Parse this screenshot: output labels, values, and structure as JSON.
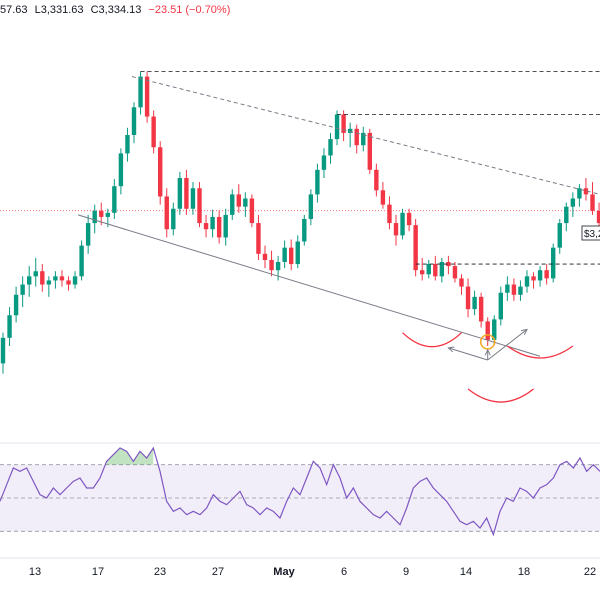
{
  "legend": {
    "open": "57.63",
    "low": "L3,331.63",
    "close": "C3,334.13",
    "change": "−23.51 (−0.70%)"
  },
  "price_tag": "$3,2",
  "colors": {
    "up": "#089981",
    "down": "#f23645",
    "rsi_line": "#7e57c2",
    "rsi_band": "#ede7f6",
    "overbought_fill": "#4caf50",
    "oversold_fill": "#f23645",
    "trendline": "#787b86",
    "arc": "#f23645",
    "circle": "#f5a623",
    "current_price_line": "#f23645"
  },
  "chart_data": [
    {
      "type": "candlestick",
      "title": "",
      "x_tick_labels": [
        "13",
        "17",
        "23",
        "27",
        "May",
        "6",
        "9",
        "14",
        "18",
        "22"
      ],
      "grid": false,
      "y_axis_visible": false,
      "candles_ohlc": [
        [
          3215,
          3245,
          3205,
          3240
        ],
        [
          3240,
          3270,
          3232,
          3262
        ],
        [
          3262,
          3290,
          3255,
          3282
        ],
        [
          3282,
          3300,
          3270,
          3292
        ],
        [
          3292,
          3310,
          3280,
          3300
        ],
        [
          3300,
          3318,
          3290,
          3305
        ],
        [
          3305,
          3312,
          3285,
          3292
        ],
        [
          3292,
          3300,
          3280,
          3296
        ],
        [
          3296,
          3305,
          3288,
          3300
        ],
        [
          3300,
          3306,
          3290,
          3296
        ],
        [
          3296,
          3300,
          3286,
          3292
        ],
        [
          3292,
          3305,
          3288,
          3300
        ],
        [
          3300,
          3335,
          3296,
          3330
        ],
        [
          3330,
          3360,
          3322,
          3352
        ],
        [
          3352,
          3370,
          3342,
          3364
        ],
        [
          3364,
          3372,
          3350,
          3358
        ],
        [
          3358,
          3366,
          3348,
          3362
        ],
        [
          3362,
          3395,
          3356,
          3388
        ],
        [
          3388,
          3425,
          3380,
          3420
        ],
        [
          3420,
          3445,
          3412,
          3438
        ],
        [
          3438,
          3470,
          3430,
          3465
        ],
        [
          3465,
          3500,
          3458,
          3495
        ],
        [
          3495,
          3500,
          3450,
          3456
        ],
        [
          3456,
          3462,
          3420,
          3426
        ],
        [
          3426,
          3432,
          3370,
          3378
        ],
        [
          3378,
          3386,
          3338,
          3346
        ],
        [
          3346,
          3372,
          3340,
          3366
        ],
        [
          3366,
          3402,
          3360,
          3396
        ],
        [
          3396,
          3404,
          3360,
          3366
        ],
        [
          3366,
          3392,
          3360,
          3386
        ],
        [
          3386,
          3392,
          3348,
          3352
        ],
        [
          3352,
          3360,
          3338,
          3346
        ],
        [
          3346,
          3365,
          3338,
          3358
        ],
        [
          3358,
          3364,
          3332,
          3338
        ],
        [
          3338,
          3366,
          3330,
          3360
        ],
        [
          3360,
          3385,
          3355,
          3380
        ],
        [
          3380,
          3390,
          3362,
          3368
        ],
        [
          3368,
          3382,
          3358,
          3376
        ],
        [
          3376,
          3380,
          3348,
          3352
        ],
        [
          3352,
          3360,
          3316,
          3322
        ],
        [
          3322,
          3330,
          3308,
          3316
        ],
        [
          3316,
          3325,
          3300,
          3306
        ],
        [
          3306,
          3320,
          3296,
          3314
        ],
        [
          3314,
          3335,
          3308,
          3328
        ],
        [
          3328,
          3336,
          3306,
          3312
        ],
        [
          3312,
          3340,
          3308,
          3334
        ],
        [
          3334,
          3360,
          3330,
          3356
        ],
        [
          3356,
          3385,
          3350,
          3380
        ],
        [
          3380,
          3410,
          3372,
          3404
        ],
        [
          3404,
          3425,
          3396,
          3418
        ],
        [
          3418,
          3440,
          3410,
          3434
        ],
        [
          3434,
          3462,
          3428,
          3458
        ],
        [
          3458,
          3462,
          3432,
          3440
        ],
        [
          3440,
          3450,
          3426,
          3444
        ],
        [
          3444,
          3448,
          3420,
          3428
        ],
        [
          3428,
          3446,
          3422,
          3440
        ],
        [
          3440,
          3444,
          3400,
          3404
        ],
        [
          3404,
          3410,
          3378,
          3384
        ],
        [
          3384,
          3392,
          3366,
          3370
        ],
        [
          3370,
          3378,
          3346,
          3352
        ],
        [
          3352,
          3360,
          3330,
          3340
        ],
        [
          3340,
          3366,
          3336,
          3362
        ],
        [
          3362,
          3366,
          3344,
          3350
        ],
        [
          3350,
          3356,
          3300,
          3306
        ],
        [
          3306,
          3318,
          3296,
          3302
        ],
        [
          3302,
          3316,
          3298,
          3312
        ],
        [
          3312,
          3320,
          3296,
          3300
        ],
        [
          3300,
          3318,
          3294,
          3314
        ],
        [
          3314,
          3320,
          3302,
          3310
        ],
        [
          3310,
          3314,
          3294,
          3298
        ],
        [
          3298,
          3302,
          3282,
          3290
        ],
        [
          3290,
          3298,
          3260,
          3268
        ],
        [
          3268,
          3286,
          3262,
          3280
        ],
        [
          3280,
          3284,
          3250,
          3256
        ],
        [
          3256,
          3260,
          3232,
          3238
        ],
        [
          3238,
          3262,
          3234,
          3258
        ],
        [
          3258,
          3290,
          3252,
          3284
        ],
        [
          3284,
          3300,
          3276,
          3292
        ],
        [
          3292,
          3298,
          3276,
          3282
        ],
        [
          3282,
          3296,
          3276,
          3290
        ],
        [
          3290,
          3306,
          3284,
          3300
        ],
        [
          3300,
          3304,
          3288,
          3296
        ],
        [
          3296,
          3310,
          3290,
          3306
        ],
        [
          3306,
          3312,
          3292,
          3298
        ],
        [
          3298,
          3332,
          3294,
          3328
        ],
        [
          3328,
          3356,
          3322,
          3352
        ],
        [
          3352,
          3372,
          3344,
          3368
        ],
        [
          3368,
          3382,
          3358,
          3376
        ],
        [
          3376,
          3390,
          3368,
          3386
        ],
        [
          3386,
          3396,
          3374,
          3380
        ],
        [
          3380,
          3392,
          3360,
          3364
        ],
        [
          3364,
          3372,
          3348,
          3352
        ]
      ],
      "current_price_level": 3364,
      "horizontal_levels": [
        3500,
        3458,
        3312
      ],
      "trendlines": [
        {
          "from": [
            0.13,
            3360
          ],
          "to": [
            0.9,
            3222
          ]
        },
        {
          "from": [
            0.22,
            3495
          ],
          "to": [
            1.0,
            3380
          ]
        }
      ],
      "rsi": {
        "upper_band": 70,
        "middle": 50,
        "lower_band": 30,
        "range": [
          20,
          80
        ],
        "values": [
          48,
          58,
          68,
          66,
          68,
          60,
          52,
          50,
          56,
          52,
          56,
          60,
          62,
          56,
          56,
          62,
          72,
          76,
          80,
          78,
          72,
          78,
          74,
          80,
          66,
          48,
          42,
          44,
          40,
          42,
          40,
          44,
          52,
          48,
          46,
          50,
          54,
          46,
          44,
          40,
          44,
          42,
          38,
          48,
          56,
          52,
          62,
          72,
          68,
          58,
          70,
          62,
          50,
          56,
          48,
          44,
          40,
          38,
          42,
          38,
          34,
          44,
          56,
          60,
          62,
          56,
          52,
          48,
          42,
          36,
          34,
          36,
          32,
          38,
          28,
          42,
          50,
          48,
          56,
          54,
          50,
          56,
          58,
          62,
          70,
          72,
          68,
          74,
          66,
          70,
          66
        ]
      }
    }
  ]
}
